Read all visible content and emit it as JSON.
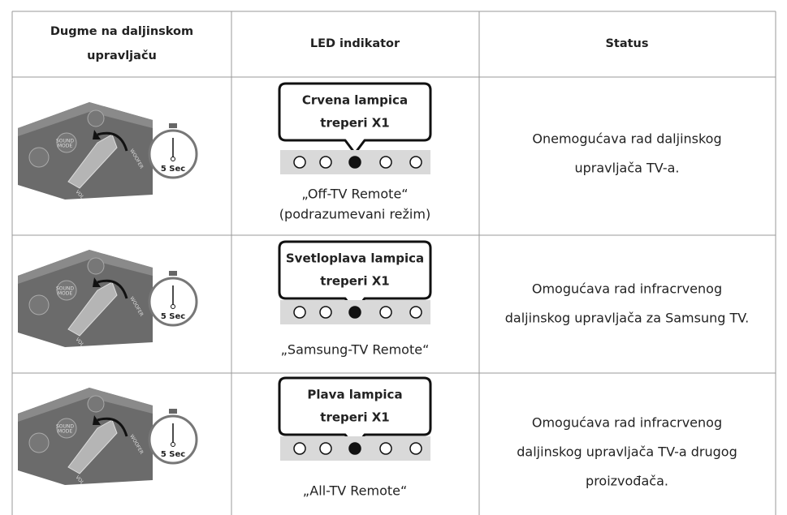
{
  "header": {
    "columns": [
      {
        "lines": [
          "Dugme na daljinskom",
          "upravljaču"
        ]
      },
      {
        "lines": [
          "LED indikator"
        ]
      },
      {
        "lines": [
          "Status"
        ]
      }
    ]
  },
  "rows": [
    {
      "remote_labels": [
        "SOUND",
        "MODE",
        "WOOFER",
        "VOL"
      ],
      "timer": "5 Sec",
      "led": {
        "lines": [
          "Crvena lampica",
          "treperi X1"
        ]
      },
      "mode": {
        "lines": [
          "„Off-TV Remote“",
          "(podrazumevani režim)"
        ]
      },
      "status": {
        "lines": [
          "Onemogućava rad daljinskog",
          "upravljača TV-a."
        ]
      }
    },
    {
      "remote_labels": [
        "SOUND",
        "MODE",
        "WOOFER",
        "VOL"
      ],
      "timer": "5 Sec",
      "led": {
        "lines": [
          "Svetloplava lampica",
          "treperi X1"
        ]
      },
      "mode": {
        "lines": [
          "„Samsung-TV Remote“"
        ]
      },
      "status": {
        "lines": [
          "Omogućava rad infracrvenog",
          "daljinskog upravljača za Samsung TV."
        ]
      }
    },
    {
      "remote_labels": [
        "SOUND",
        "MODE",
        "WOOFER",
        "VOL"
      ],
      "timer": "5 Sec",
      "led": {
        "lines": [
          "Plava lampica",
          "treperi X1"
        ]
      },
      "mode": {
        "lines": [
          "„All-TV Remote“"
        ]
      },
      "status": {
        "lines": [
          "Omogućava rad infracrvenog",
          "daljinskog upravljača TV-a drugog",
          "proizvođača."
        ]
      }
    }
  ]
}
